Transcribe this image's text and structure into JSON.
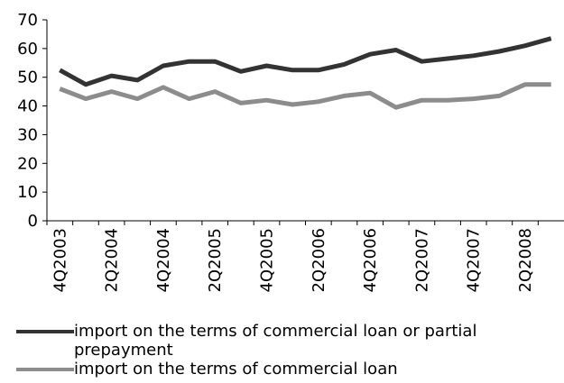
{
  "chart_data": {
    "type": "line",
    "categories": [
      "4Q2003",
      null,
      "2Q2004",
      null,
      "4Q2004",
      null,
      "2Q2005",
      null,
      "4Q2005",
      null,
      "2Q2006",
      null,
      "4Q2006",
      null,
      "2Q2007",
      null,
      "4Q2007",
      null,
      "2Q2008",
      null
    ],
    "series": [
      {
        "name": "import on the terms of commercial loan or partial prepayment",
        "color": "#333333",
        "values": [
          52.5,
          47.5,
          50.5,
          49,
          54,
          55.5,
          55.5,
          52,
          54,
          52.5,
          52.5,
          54.5,
          58,
          59.5,
          55.5,
          56.5,
          57.5,
          59,
          61,
          63.5
        ]
      },
      {
        "name": "import on the terms of commercial loan",
        "color": "#8c8c8c",
        "values": [
          46,
          42.5,
          45,
          42.5,
          46.5,
          42.5,
          45,
          41,
          42,
          40.5,
          41.5,
          43.5,
          44.5,
          39.5,
          42,
          42,
          42.5,
          43.5,
          47.5,
          47.5
        ]
      }
    ],
    "ylim": [
      0,
      70
    ],
    "yticks": [
      0,
      10,
      20,
      30,
      40,
      50,
      60,
      70
    ],
    "grid": false,
    "legend": "bottom"
  }
}
